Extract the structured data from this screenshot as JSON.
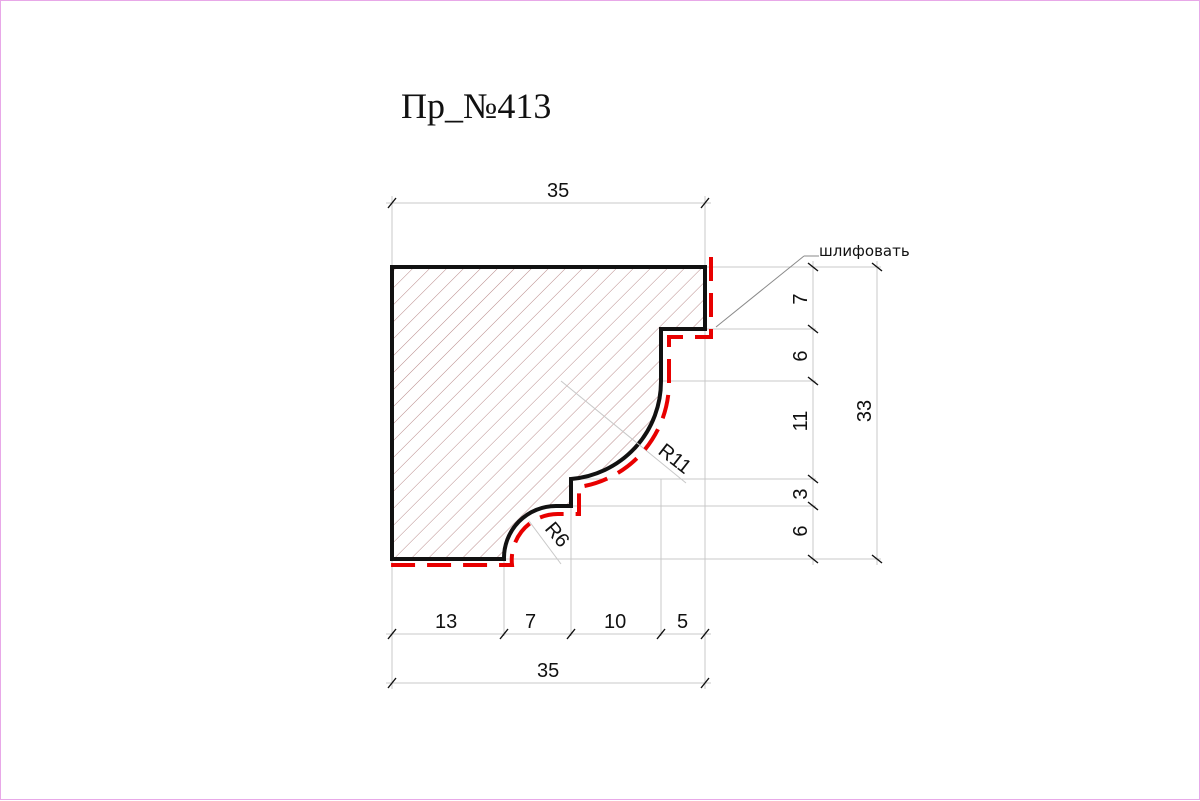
{
  "title": "Пр_№413",
  "note": "шлифовать",
  "dimensions": {
    "top_width": "35",
    "bottom_width": "35",
    "bottom_segments": [
      "13",
      "7",
      "10",
      "5"
    ],
    "right_segments": [
      "7",
      "6",
      "11",
      "3",
      "6"
    ],
    "total_height": "33",
    "radius_large": "R11",
    "radius_small": "R6"
  },
  "colors": {
    "outline": "#111111",
    "hatch": "#b98a8a",
    "sanding_line": "#e80000",
    "dimension_line": "#c8c8c8"
  }
}
